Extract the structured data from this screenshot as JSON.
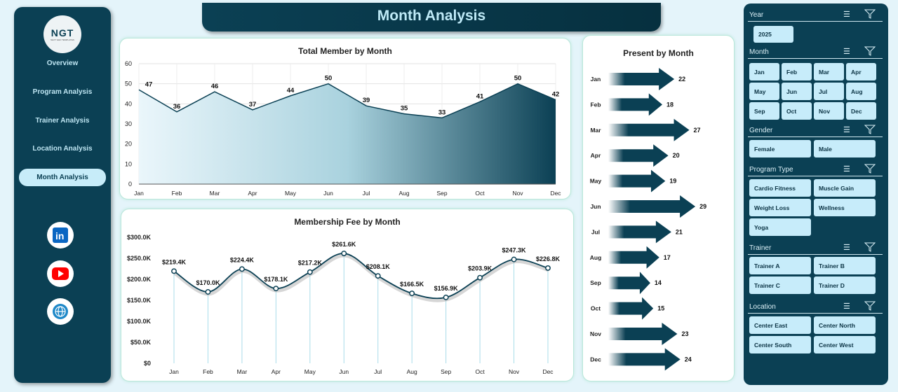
{
  "header": {
    "title": "Month Analysis"
  },
  "logo": {
    "text": "NGT",
    "subtext": "NEXT GEN TEMPLATES"
  },
  "sidebar": {
    "items": [
      {
        "label": "Overview"
      },
      {
        "label": "Program Analysis"
      },
      {
        "label": "Trainer Analysis"
      },
      {
        "label": "Location Analysis"
      },
      {
        "label": "Month Analysis",
        "active": true
      }
    ],
    "social": [
      {
        "icon": "linkedin-icon",
        "color": "#0a66c2"
      },
      {
        "icon": "youtube-icon",
        "color": "#ff0000"
      },
      {
        "icon": "globe-icon",
        "color": "#1e88c8"
      }
    ]
  },
  "slicers": {
    "year": {
      "title": "Year",
      "items": [
        "2025"
      ]
    },
    "month": {
      "title": "Month",
      "items": [
        "Jan",
        "Feb",
        "Mar",
        "Apr",
        "May",
        "Jun",
        "Jul",
        "Aug",
        "Sep",
        "Oct",
        "Nov",
        "Dec"
      ]
    },
    "gender": {
      "title": "Gender",
      "items": [
        "Female",
        "Male"
      ]
    },
    "program": {
      "title": "Program Type",
      "items": [
        "Cardio Fitness",
        "Muscle Gain",
        "Weight Loss",
        "Wellness",
        "Yoga"
      ]
    },
    "trainer": {
      "title": "Trainer",
      "items": [
        "Trainer A",
        "Trainer B",
        "Trainer C",
        "Trainer D"
      ]
    },
    "location": {
      "title": "Location",
      "items": [
        "Center East",
        "Center North",
        "Center South",
        "Center West"
      ]
    }
  },
  "chart_data": [
    {
      "type": "area",
      "title": "Total Member by Month",
      "categories": [
        "Jan",
        "Feb",
        "Mar",
        "Apr",
        "May",
        "Jun",
        "Jul",
        "Aug",
        "Sep",
        "Oct",
        "Nov",
        "Dec"
      ],
      "values": [
        47,
        36,
        46,
        37,
        44,
        50,
        39,
        35,
        33,
        41,
        50,
        42
      ],
      "ylim": [
        0,
        60
      ],
      "yticks": [
        0,
        10,
        20,
        30,
        40,
        50,
        60
      ],
      "grid": true
    },
    {
      "type": "line",
      "title": "Membership Fee by Month",
      "categories": [
        "Jan",
        "Feb",
        "Mar",
        "Apr",
        "May",
        "Jun",
        "Jul",
        "Aug",
        "Sep",
        "Oct",
        "Nov",
        "Dec"
      ],
      "values": [
        219.4,
        170.0,
        224.4,
        178.1,
        217.2,
        261.6,
        208.1,
        166.5,
        156.9,
        203.9,
        247.3,
        226.8
      ],
      "labels": [
        "$219.4K",
        "$170.0K",
        "$224.4K",
        "$178.1K",
        "$217.2K",
        "$261.6K",
        "$208.1K",
        "$166.5K",
        "$156.9K",
        "$203.9K",
        "$247.3K",
        "$226.8K"
      ],
      "ylim": [
        0,
        300
      ],
      "yticks": [
        "$0",
        "$50.0K",
        "$100.0K",
        "$150.0K",
        "$200.0K",
        "$250.0K",
        "$300.0K"
      ],
      "smooth": true
    },
    {
      "type": "bar",
      "orientation": "horizontal",
      "title": "Present by Month",
      "categories": [
        "Jan",
        "Feb",
        "Mar",
        "Apr",
        "May",
        "Jun",
        "Jul",
        "Aug",
        "Sep",
        "Oct",
        "Nov",
        "Dec"
      ],
      "values": [
        22,
        18,
        27,
        20,
        19,
        29,
        21,
        17,
        14,
        15,
        23,
        24
      ]
    }
  ]
}
